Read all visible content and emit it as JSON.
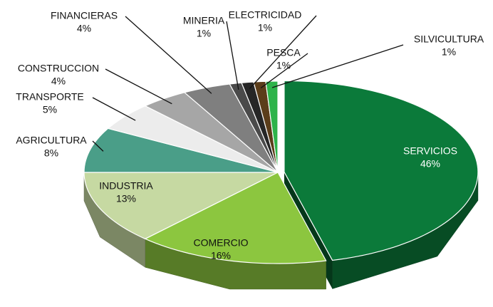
{
  "chart_data": {
    "type": "pie",
    "categories": [
      "SERVICIOS",
      "COMERCIO",
      "INDUSTRIA",
      "AGRICULTURA",
      "TRANSPORTE",
      "CONSTRUCCION",
      "FINANCIERAS",
      "MINERIA",
      "ELECTRICIDAD",
      "PESCA",
      "SILVICULTURA"
    ],
    "values": [
      46,
      16,
      13,
      8,
      5,
      4,
      4,
      1,
      1,
      1,
      1
    ],
    "value_labels": [
      "46%",
      "16%",
      "13%",
      "8%",
      "5%",
      "4%",
      "4%",
      "1%",
      "1%",
      "1%",
      "1%"
    ],
    "colors": [
      "#0b7a3a",
      "#8cc63f",
      "#c6d9a2",
      "#4a9e88",
      "#ececec",
      "#a6a6a6",
      "#7f7f7f",
      "#4a4a4a",
      "#262626",
      "#5b3d1a",
      "#2db34a"
    ]
  }
}
